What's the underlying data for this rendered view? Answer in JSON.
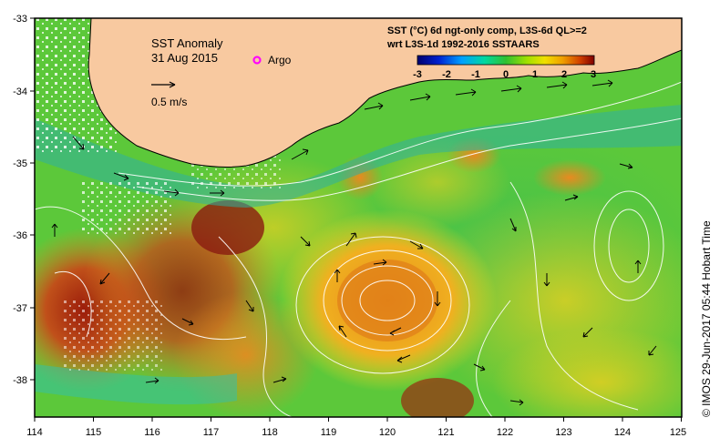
{
  "map": {
    "title": "SST Anomaly",
    "date": "31 Aug 2015",
    "argo_label": "Argo",
    "scale_label": "0.5 m/s",
    "legend_line1": "SST (°C) 6d ngt-only comp, L3S-6d QL>=2",
    "legend_line2": "wrt L3S-1d 1992-2016 SSTAARS",
    "credit": "© IMOS 29-Jun-2017 05:44 Hobart Time",
    "colorbar": {
      "min": -3,
      "max": 3,
      "ticks": [
        "-3",
        "-2",
        "-1",
        "0",
        "1",
        "2",
        "3"
      ]
    },
    "x_axis": {
      "min": 114,
      "max": 125,
      "ticks": [
        "114",
        "115",
        "116",
        "117",
        "118",
        "119",
        "120",
        "121",
        "122",
        "123",
        "124",
        "125"
      ]
    },
    "y_axis": {
      "min": -38.5,
      "max": -33,
      "ticks": [
        "-33",
        "-34",
        "-35",
        "-36",
        "-37",
        "-38"
      ]
    },
    "colors": {
      "land": "#f8c9a0",
      "frame": "#000000",
      "contour": "#ffffff",
      "argo": "#ff00ff"
    }
  }
}
